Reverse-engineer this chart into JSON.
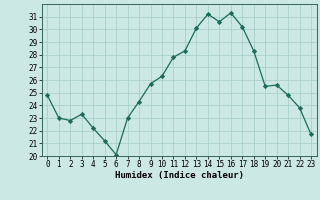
{
  "x": [
    0,
    1,
    2,
    3,
    4,
    5,
    6,
    7,
    8,
    9,
    10,
    11,
    12,
    13,
    14,
    15,
    16,
    17,
    18,
    19,
    20,
    21,
    22,
    23
  ],
  "y": [
    24.8,
    23.0,
    22.8,
    23.3,
    22.2,
    21.2,
    20.1,
    23.0,
    24.3,
    25.7,
    26.3,
    27.8,
    28.3,
    30.1,
    31.2,
    30.6,
    31.3,
    30.2,
    28.3,
    25.5,
    25.6,
    24.8,
    23.8,
    21.7
  ],
  "line_color": "#1a6b5a",
  "marker": "D",
  "marker_size": 2.2,
  "bg_color": "#cce8e4",
  "grid_color": "#aacfcb",
  "xlabel": "Humidex (Indice chaleur)",
  "ylim": [
    20,
    32
  ],
  "xlim": [
    -0.5,
    23.5
  ],
  "yticks": [
    20,
    21,
    22,
    23,
    24,
    25,
    26,
    27,
    28,
    29,
    30,
    31
  ],
  "xticks": [
    0,
    1,
    2,
    3,
    4,
    5,
    6,
    7,
    8,
    9,
    10,
    11,
    12,
    13,
    14,
    15,
    16,
    17,
    18,
    19,
    20,
    21,
    22,
    23
  ],
  "label_fontsize": 6.5,
  "tick_fontsize": 5.5
}
